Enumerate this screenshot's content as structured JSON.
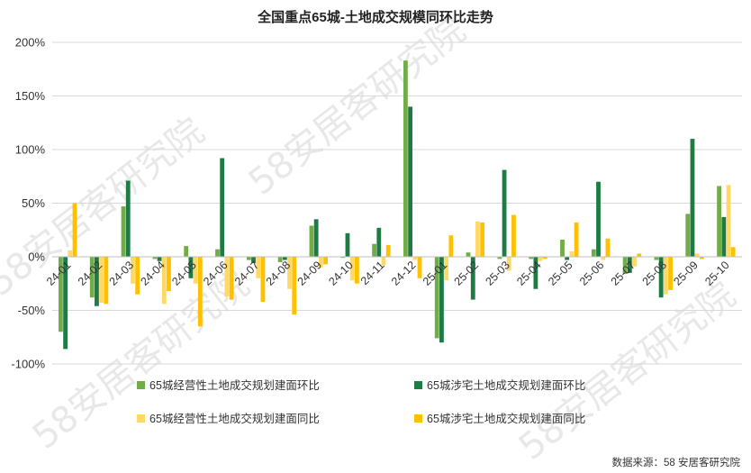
{
  "chart_data": {
    "type": "bar",
    "title": "全国重点65城-土地成交规模同环比走势",
    "categories": [
      "24-01",
      "24-02",
      "24-03",
      "24-04",
      "24-05",
      "24-06",
      "24-07",
      "24-08",
      "24-09",
      "24-10",
      "24-11",
      "24-12",
      "25-01",
      "25-02",
      "25-03",
      "25-04",
      "25-05",
      "25-06",
      "25-07",
      "25-08",
      "25-09",
      "25-10"
    ],
    "ylim": [
      -100,
      200
    ],
    "yticks": [
      -100,
      -50,
      0,
      50,
      100,
      150,
      200
    ],
    "ytick_labels": [
      "-100%",
      "-50%",
      "0%",
      "50%",
      "100%",
      "150%",
      "200%"
    ],
    "grid": true,
    "legend_position": "bottom",
    "series": [
      {
        "name": "65城经营性土地成交规划建面环比",
        "color": "#70ad47",
        "values": [
          -70,
          -38,
          47,
          -2,
          10,
          7,
          -3,
          -5,
          29,
          -1,
          12,
          183,
          -76,
          4,
          -2,
          -2,
          16,
          7,
          -16,
          -3,
          40,
          66
        ]
      },
      {
        "name": "65城涉宅土地成交规划建面环比",
        "color": "#1e7b45",
        "values": [
          -86,
          -46,
          71,
          -4,
          -20,
          92,
          -6,
          -3,
          35,
          22,
          27,
          140,
          -80,
          -40,
          81,
          -30,
          -3,
          70,
          -15,
          -38,
          110,
          37
        ]
      },
      {
        "name": "65城经营性土地成交规划建面同比",
        "color": "#ffd966",
        "values": [
          6,
          -43,
          -25,
          -44,
          -25,
          -37,
          -20,
          -30,
          -10,
          -22,
          -8,
          -3,
          -22,
          33,
          -13,
          -4,
          5,
          -3,
          -9,
          -35,
          3,
          67
        ]
      },
      {
        "name": "65城涉宅土地成交规划建面同比",
        "color": "#ffc000",
        "values": [
          50,
          -44,
          -35,
          -32,
          -65,
          -40,
          -42,
          -54,
          -7,
          -25,
          11,
          -20,
          20,
          32,
          39,
          -2,
          32,
          17,
          3,
          -31,
          -2,
          9
        ]
      }
    ],
    "source": "数据来源：58 安居客研究院"
  },
  "watermark": "58安居客研究院"
}
